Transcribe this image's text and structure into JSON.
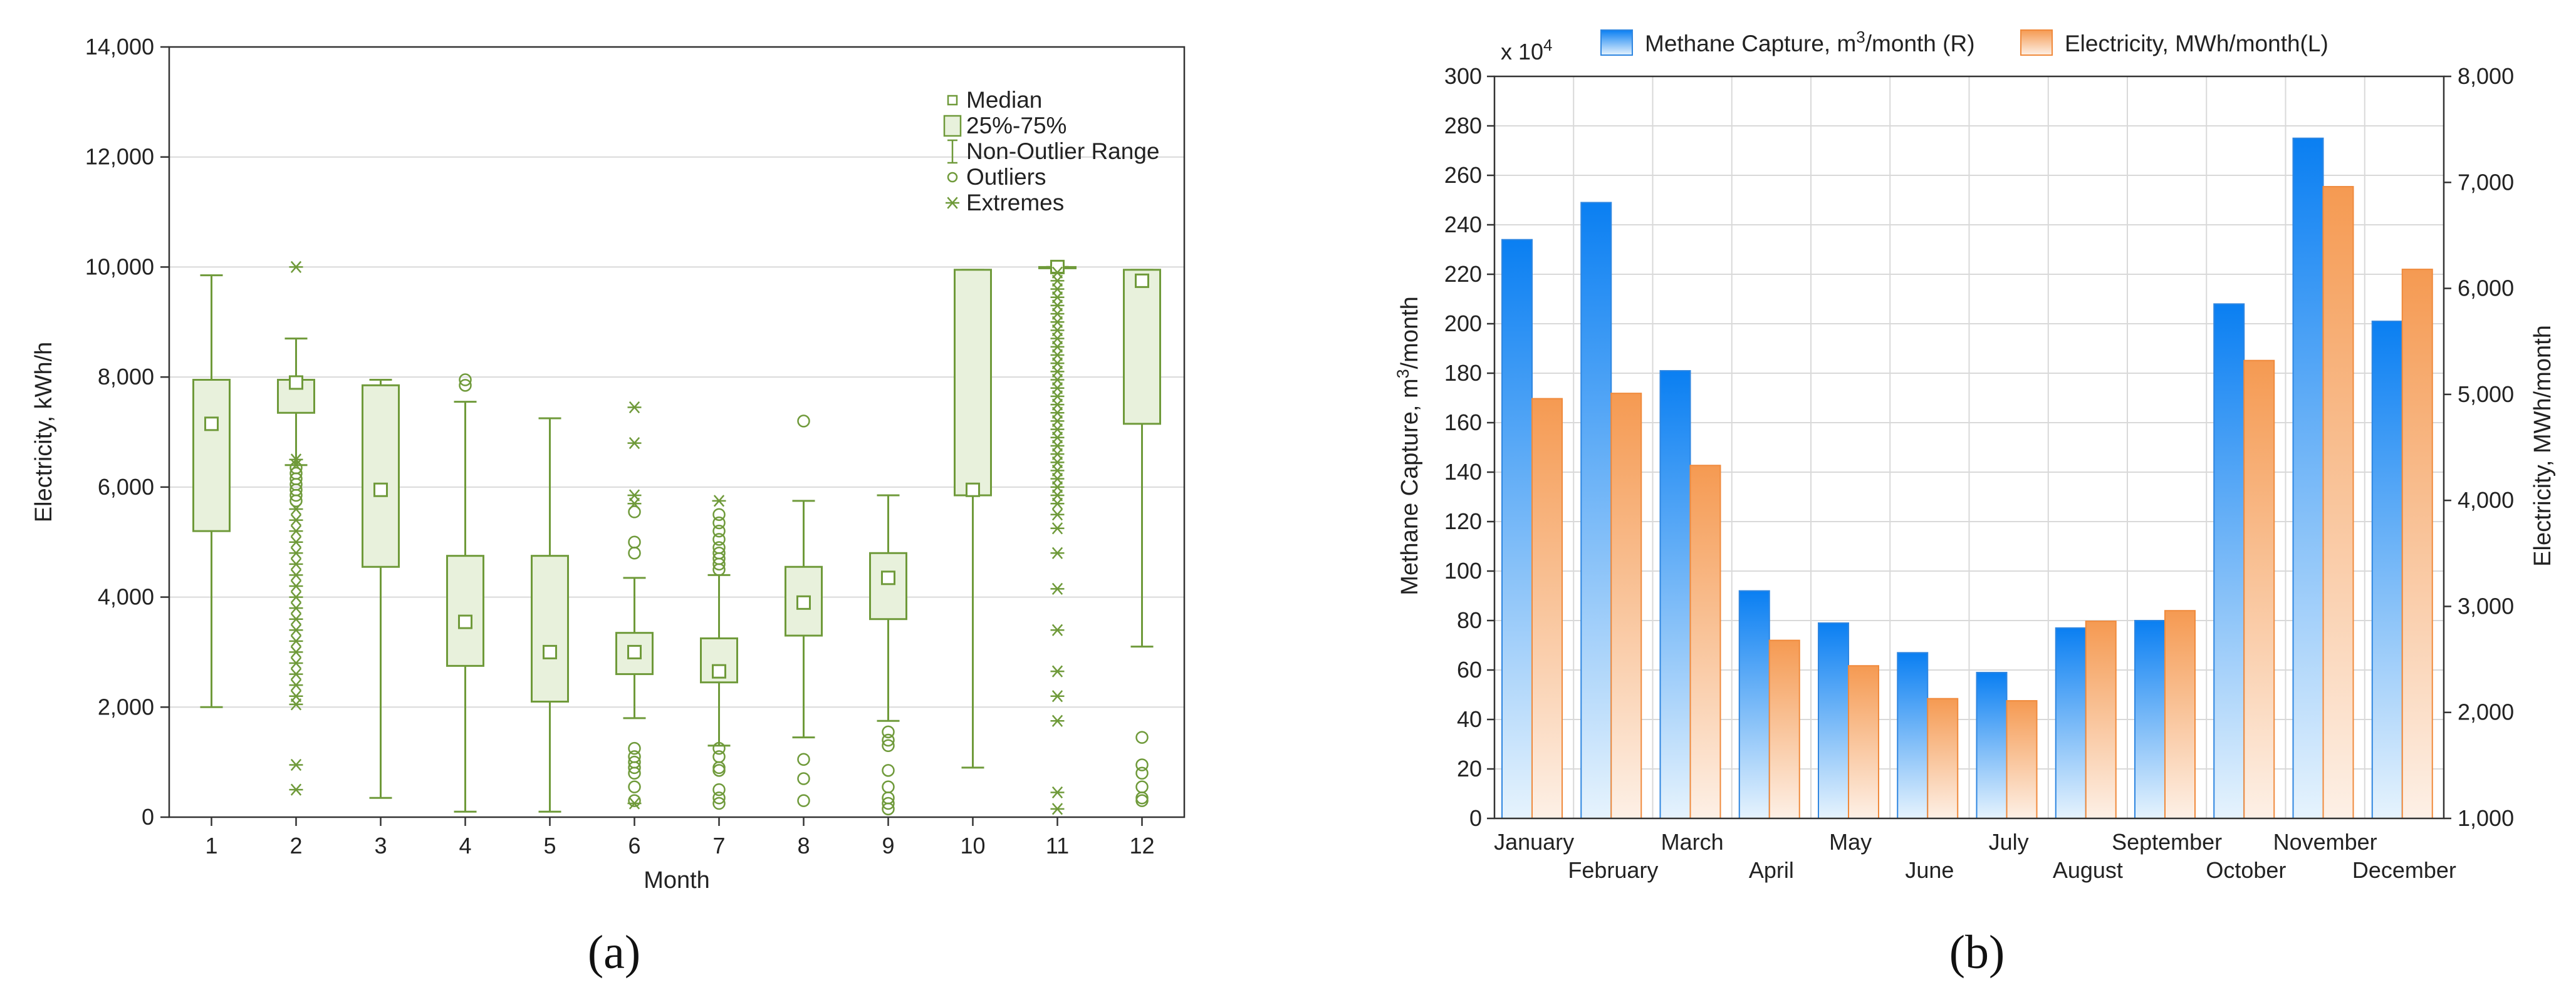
{
  "chart_data": [
    {
      "id": "a",
      "type": "boxplot",
      "panel_label": "(a)",
      "xlabel": "Month",
      "ylabel": "Electricity, kWh/h",
      "ylim": [
        0,
        14000
      ],
      "yticks": [
        0,
        2000,
        4000,
        6000,
        8000,
        10000,
        12000,
        14000
      ],
      "ytick_labels": [
        "0",
        "2,000",
        "4,000",
        "6,000",
        "8,000",
        "10,000",
        "12,000",
        "14,000"
      ],
      "categories": [
        "1",
        "2",
        "3",
        "4",
        "5",
        "6",
        "7",
        "8",
        "9",
        "10",
        "11",
        "12"
      ],
      "legend": [
        {
          "key": "median",
          "label": "Median"
        },
        {
          "key": "box",
          "label": "25%-75%"
        },
        {
          "key": "whisker",
          "label": "Non-Outlier Range"
        },
        {
          "key": "outlier",
          "label": "Outliers"
        },
        {
          "key": "extreme",
          "label": "Extremes"
        }
      ],
      "colors": {
        "stroke": "#6f9a3a",
        "fill": "#e8f1dc",
        "grid": "#d9d9d9"
      },
      "boxes": [
        {
          "month": "1",
          "q1": 5200,
          "median": 7150,
          "q3": 7950,
          "wlow": 2000,
          "whigh": 9850,
          "outliers": [],
          "extremes": []
        },
        {
          "month": "2",
          "q1": 7350,
          "median": 7900,
          "q3": 7950,
          "wlow": 6400,
          "whigh": 8700,
          "outliers": [
            6350,
            6250,
            6150,
            6050,
            5950,
            5850,
            5750
          ],
          "extremes": [
            10000,
            6500,
            6400,
            5600,
            5400,
            5200,
            5000,
            4800,
            4600,
            4400,
            4200,
            4000,
            3800,
            3600,
            3400,
            3200,
            3000,
            2800,
            2600,
            2400,
            2200,
            2050,
            950,
            500
          ]
        },
        {
          "month": "3",
          "q1": 4550,
          "median": 5950,
          "q3": 7850,
          "wlow": 350,
          "whigh": 7950,
          "outliers": [],
          "extremes": []
        },
        {
          "month": "4",
          "q1": 2750,
          "median": 3550,
          "q3": 4750,
          "wlow": 100,
          "whigh": 7550,
          "outliers": [
            7950,
            7850
          ],
          "extremes": []
        },
        {
          "month": "5",
          "q1": 2100,
          "median": 3000,
          "q3": 4750,
          "wlow": 100,
          "whigh": 7250,
          "outliers": [],
          "extremes": []
        },
        {
          "month": "6",
          "q1": 2600,
          "median": 3000,
          "q3": 3350,
          "wlow": 1800,
          "whigh": 4350,
          "outliers": [
            5550,
            5000,
            4800,
            1250,
            1100,
            1000,
            900,
            800,
            550,
            300
          ],
          "extremes": [
            7450,
            6800,
            5850,
            5700,
            250
          ]
        },
        {
          "month": "7",
          "q1": 2450,
          "median": 2650,
          "q3": 3250,
          "wlow": 1300,
          "whigh": 4400,
          "outliers": [
            5500,
            5350,
            5200,
            5050,
            4900,
            4800,
            4700,
            4600,
            4500,
            1250,
            1100,
            900,
            850,
            500,
            350,
            250
          ],
          "extremes": [
            5750
          ]
        },
        {
          "month": "8",
          "q1": 3300,
          "median": 3900,
          "q3": 4550,
          "wlow": 1450,
          "whigh": 5750,
          "outliers": [
            7200,
            1050,
            700,
            300
          ],
          "extremes": []
        },
        {
          "month": "9",
          "q1": 3600,
          "median": 4350,
          "q3": 4800,
          "wlow": 1750,
          "whigh": 5850,
          "outliers": [
            1550,
            1400,
            1300,
            850,
            550,
            350,
            250,
            150
          ],
          "extremes": []
        },
        {
          "month": "10",
          "q1": 5850,
          "median": 5950,
          "q3": 9950,
          "wlow": 900,
          "whigh": 9950,
          "outliers": [],
          "extremes": []
        },
        {
          "month": "11",
          "q1": 10000,
          "median": 10000,
          "q3": 10000,
          "wlow": 10000,
          "whigh": 10000,
          "outliers": [],
          "extremes": [
            9900,
            9750,
            9600,
            9450,
            9300,
            9150,
            9000,
            8850,
            8700,
            8550,
            8400,
            8250,
            8100,
            7950,
            7800,
            7650,
            7500,
            7350,
            7200,
            7050,
            6900,
            6750,
            6600,
            6450,
            6300,
            6150,
            6000,
            5850,
            5700,
            5500,
            5250,
            4800,
            4150,
            3400,
            2650,
            2200,
            1750,
            450,
            150
          ]
        },
        {
          "month": "12",
          "q1": 7150,
          "median": 9750,
          "q3": 9950,
          "wlow": 3100,
          "whigh": 9950,
          "outliers": [
            1450,
            950,
            800,
            550,
            350,
            300
          ],
          "extremes": []
        }
      ]
    },
    {
      "id": "b",
      "type": "bar",
      "panel_label": "(b)",
      "categories": [
        "January",
        "February",
        "March",
        "April",
        "May",
        "June",
        "July",
        "August",
        "September",
        "October",
        "November",
        "December"
      ],
      "multiplier_label": "x 10",
      "multiplier_exp": "4",
      "ylabel_left": "Methane Capture, m",
      "ylabel_left_sup": "3",
      "ylabel_left_tail": "/month",
      "ylabel_right": "Electricity, MWh/month",
      "ylim_left": [
        0,
        300
      ],
      "yticks_left": [
        "0",
        "20",
        "40",
        "60",
        "80",
        "100",
        "120",
        "140",
        "160",
        "180",
        "200",
        "220",
        "240",
        "260",
        "280",
        "300"
      ],
      "ylim_right": [
        1000,
        8000
      ],
      "yticks_right": [
        "1,000",
        "2,000",
        "3,000",
        "4,000",
        "5,000",
        "6,000",
        "7,000",
        "8,000"
      ],
      "legend": [
        {
          "name": "methane",
          "label": "Methane Capture, m",
          "sup": "3",
          "tail": "/month (R)"
        },
        {
          "name": "electricity",
          "label": "Electricity, MWh/month(L)"
        }
      ],
      "series": [
        {
          "name": "Methane Capture",
          "axis": "left",
          "values": [
            234,
            249,
            181,
            92,
            79,
            67,
            59,
            77,
            80,
            208,
            275,
            201
          ]
        },
        {
          "name": "Electricity",
          "axis": "right",
          "values": [
            4960,
            5010,
            4330,
            2680,
            2440,
            2130,
            2110,
            2860,
            2960,
            5320,
            6960,
            6180
          ]
        }
      ],
      "colors": {
        "methane_top": "#0a7ff2",
        "methane_bottom": "#e6f3fd",
        "methane_edge": "#2f86e0",
        "elec_top": "#f59a52",
        "elec_bottom": "#fdf0e6",
        "elec_edge": "#f08a3c",
        "grid": "#d9d9d9"
      }
    }
  ]
}
